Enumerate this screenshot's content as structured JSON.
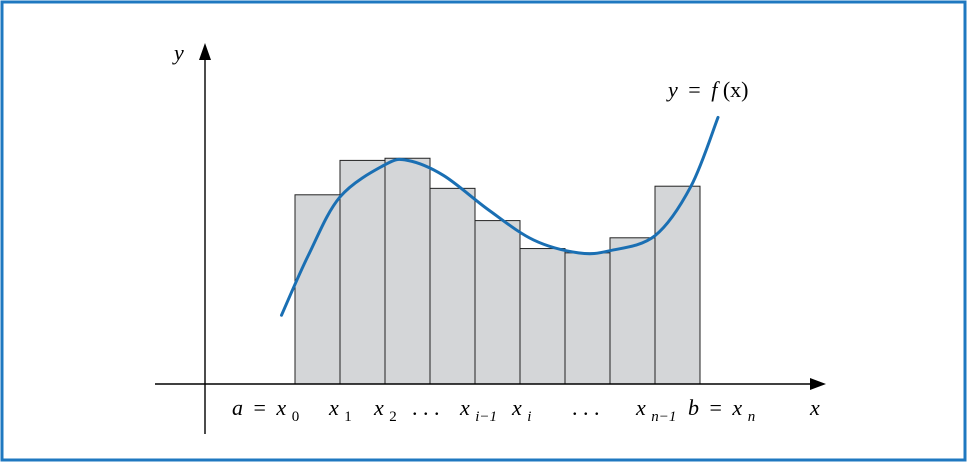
{
  "colors": {
    "frame": "#1f78c0",
    "curve": "#1a6fb3",
    "rect_fill": "#d4d6d8",
    "rect_stroke": "#222222",
    "axis": "#000000"
  },
  "labels": {
    "y_axis": "y",
    "x_axis": "x",
    "curve_y": "y",
    "curve_eq": "=",
    "curve_f": "f",
    "curve_arg": "(x)",
    "a": "a",
    "eq": "=",
    "x": "x",
    "sub0": "0",
    "sub1": "1",
    "sub2": "2",
    "dots": ". . .",
    "sub_im1": "i−1",
    "sub_i": "i",
    "sub_nm1": "n−1",
    "b": "b",
    "sub_n": "n"
  },
  "chart_data": {
    "type": "bar",
    "title": "",
    "xlabel": "x",
    "ylabel": "y",
    "xlim": [
      0,
      18
    ],
    "ylim": [
      -1.5,
      9
    ],
    "rectangles": [
      {
        "x0": 2,
        "x1": 3,
        "height": 4.4
      },
      {
        "x0": 3,
        "x1": 4,
        "height": 5.2
      },
      {
        "x0": 4,
        "x1": 5,
        "height": 5.25
      },
      {
        "x0": 5,
        "x1": 6,
        "height": 4.55
      },
      {
        "x0": 6,
        "x1": 7,
        "height": 3.8
      },
      {
        "x0": 7,
        "x1": 8,
        "height": 3.15
      },
      {
        "x0": 8,
        "x1": 9,
        "height": 3.05
      },
      {
        "x0": 9,
        "x1": 10,
        "height": 3.4
      },
      {
        "x0": 10,
        "x1": 11,
        "height": 4.6
      }
    ],
    "curve": {
      "name": "y = f(x)",
      "points": [
        [
          1.7,
          1.6
        ],
        [
          2.3,
          3.0
        ],
        [
          3.0,
          4.35
        ],
        [
          4.0,
          5.1
        ],
        [
          4.5,
          5.2
        ],
        [
          5.3,
          4.85
        ],
        [
          6.3,
          4.05
        ],
        [
          7.3,
          3.35
        ],
        [
          8.3,
          3.05
        ],
        [
          9.0,
          3.1
        ],
        [
          10.0,
          3.45
        ],
        [
          10.8,
          4.6
        ],
        [
          11.4,
          6.2
        ]
      ]
    }
  }
}
